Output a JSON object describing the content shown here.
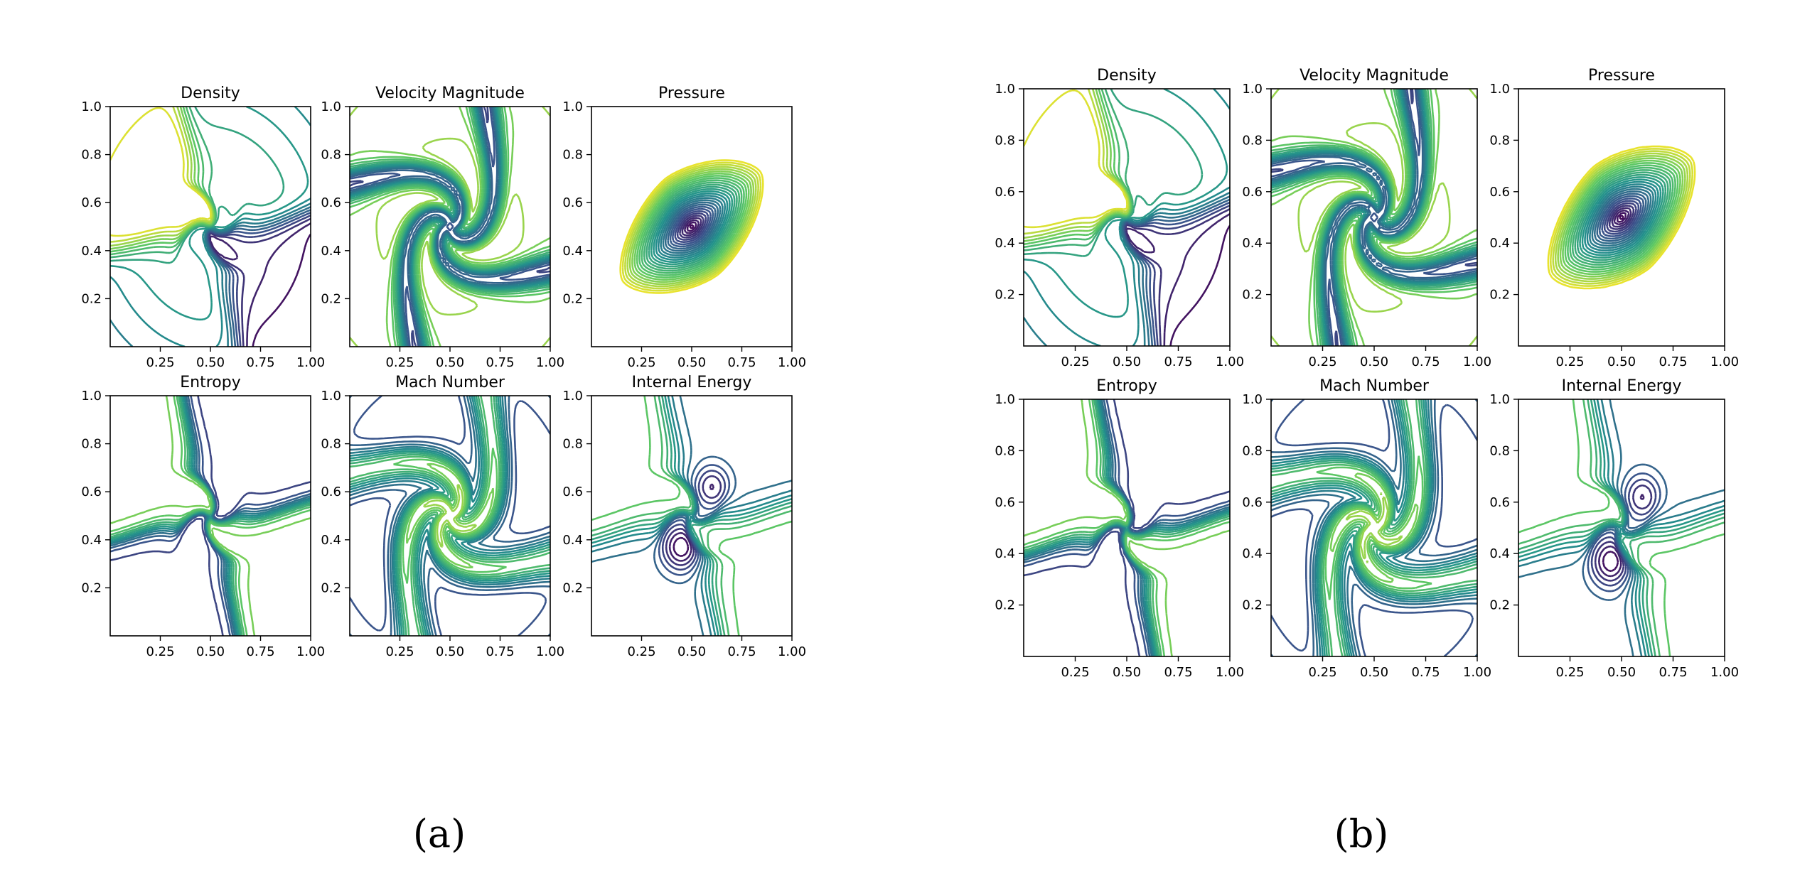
{
  "chart_data": {
    "type": "contour",
    "colormap": "viridis",
    "colors": [
      "#440154",
      "#3b528b",
      "#21918c",
      "#5ec962",
      "#fde725"
    ],
    "groups": [
      {
        "label": "(a)",
        "panels": [
          {
            "title": "Density",
            "kind": "density"
          },
          {
            "title": "Velocity Magnitude",
            "kind": "velocity"
          },
          {
            "title": "Pressure",
            "kind": "pressure"
          },
          {
            "title": "Entropy",
            "kind": "entropy"
          },
          {
            "title": "Mach Number",
            "kind": "mach"
          },
          {
            "title": "Internal Energy",
            "kind": "energy"
          }
        ]
      },
      {
        "label": "(b)",
        "panels": [
          {
            "title": "Density",
            "kind": "density"
          },
          {
            "title": "Velocity Magnitude",
            "kind": "velocity"
          },
          {
            "title": "Pressure",
            "kind": "pressure"
          },
          {
            "title": "Entropy",
            "kind": "entropy"
          },
          {
            "title": "Mach Number",
            "kind": "mach"
          },
          {
            "title": "Internal Energy",
            "kind": "energy"
          }
        ]
      }
    ],
    "xlim": [
      0,
      1
    ],
    "ylim": [
      0,
      1
    ],
    "x_ticks": [
      "0.25",
      "0.50",
      "0.75",
      "1.00"
    ],
    "y_ticks": [
      "0.2",
      "0.4",
      "0.6",
      "0.8",
      "1.0"
    ],
    "x_tick_values": [
      0.25,
      0.5,
      0.75,
      1.0
    ],
    "y_tick_values": [
      0.2,
      0.4,
      0.6,
      0.8,
      1.0
    ]
  }
}
